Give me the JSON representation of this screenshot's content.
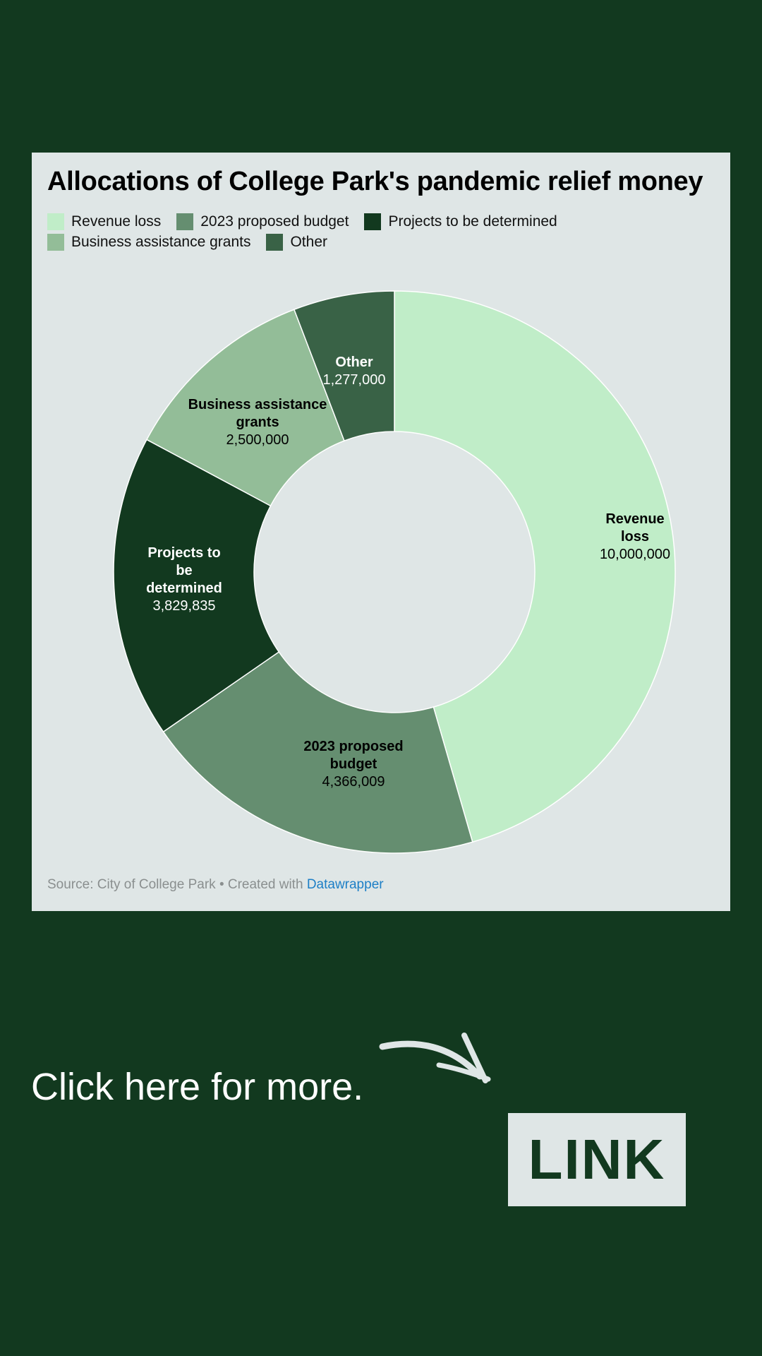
{
  "chart_data": {
    "type": "pie",
    "title": "Allocations of College Park's pandemic relief money",
    "series": [
      {
        "name": "Revenue loss",
        "label_lines": [
          "Revenue",
          "loss"
        ],
        "value": 10000000,
        "value_label": "10,000,000",
        "color": "#c0edc8",
        "text_color": "#000000"
      },
      {
        "name": "2023 proposed budget",
        "label_lines": [
          "2023 proposed",
          "budget"
        ],
        "value": 4366009,
        "value_label": "4,366,009",
        "color": "#658e70",
        "text_color": "#000000"
      },
      {
        "name": "Projects to be determined",
        "label_lines": [
          "Projects to",
          "be",
          "determined"
        ],
        "value": 3829835,
        "value_label": "3,829,835",
        "color": "#12391f",
        "text_color": "#ffffff"
      },
      {
        "name": "Business assistance grants",
        "label_lines": [
          "Business assistance",
          "grants"
        ],
        "value": 2500000,
        "value_label": "2,500,000",
        "color": "#93bd98",
        "text_color": "#000000"
      },
      {
        "name": "Other",
        "label_lines": [
          "Other"
        ],
        "value": 1277000,
        "value_label": "1,277,000",
        "color": "#396246",
        "text_color": "#ffffff"
      }
    ],
    "legend_placement": "top-left",
    "legend_rows": [
      [
        0,
        1,
        2
      ],
      [
        3,
        4
      ]
    ],
    "inner_fill": "#dfe6e6"
  },
  "footer": {
    "source_text": "Source: City of College Park • Created with ",
    "credit": "Datawrapper"
  },
  "cta": {
    "text": "Click here for more.",
    "button_label": "LINK"
  },
  "colors": {
    "background": "#12391f",
    "card": "#dfe6e6",
    "link": "#1d7fc6"
  }
}
